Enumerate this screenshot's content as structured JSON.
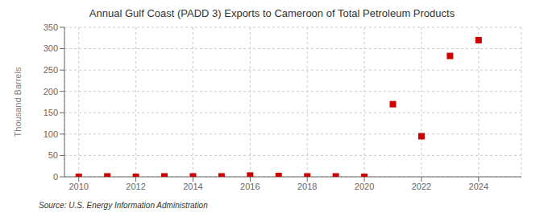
{
  "chart_data": {
    "type": "scatter",
    "title": "Annual Gulf Coast (PADD 3) Exports to Cameroon of Total Petroleum Products",
    "ylabel": "Thousand Barrels",
    "annotations": [
      "Source: U.S. Energy Information Administration"
    ],
    "x": [
      2010,
      2011,
      2012,
      2013,
      2014,
      2015,
      2016,
      2017,
      2018,
      2019,
      2020,
      2021,
      2022,
      2023,
      2024
    ],
    "values": [
      0,
      1,
      0,
      1,
      1,
      1,
      3,
      2,
      1,
      1,
      0,
      170,
      95,
      283,
      320
    ],
    "color": "#cc0000",
    "marker": "square",
    "xlim": [
      2009.5,
      2025.5
    ],
    "ylim": [
      0,
      350
    ],
    "xticks": [
      2010,
      2012,
      2014,
      2016,
      2018,
      2020,
      2022,
      2024
    ],
    "yticks": [
      0,
      50,
      100,
      150,
      200,
      250,
      300,
      350
    ],
    "grid": true
  }
}
